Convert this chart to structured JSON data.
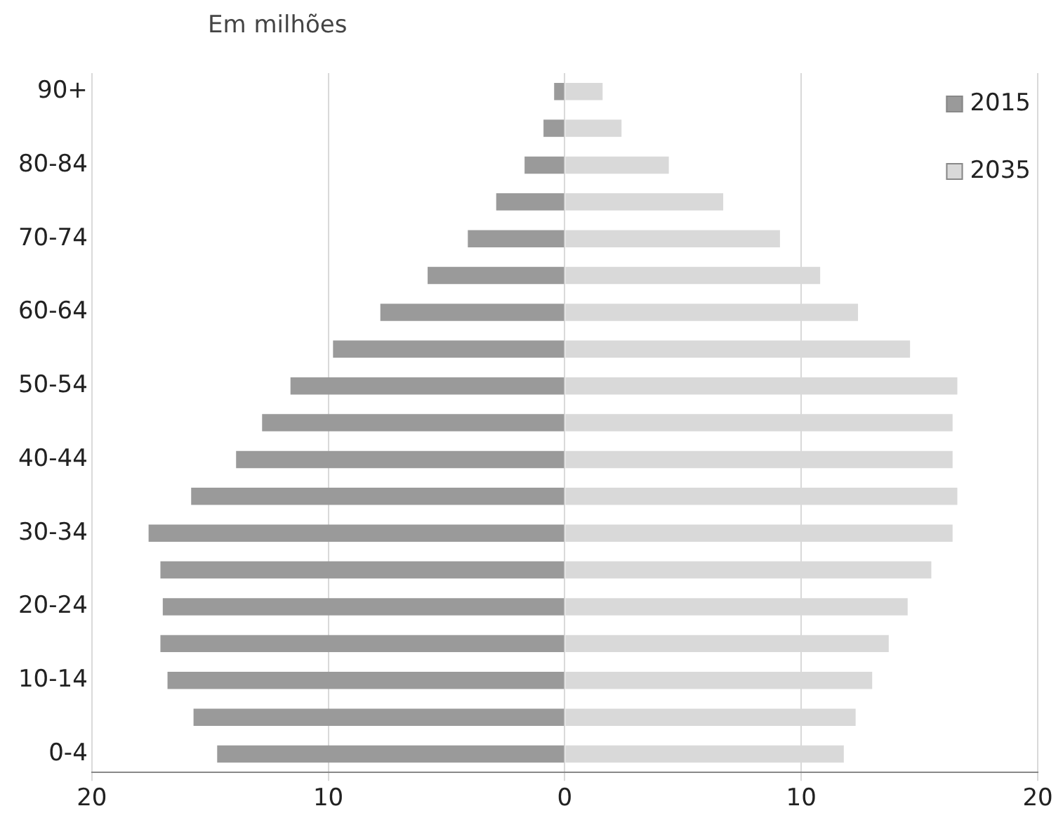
{
  "chart_data": {
    "type": "bar",
    "orientation": "horizontal",
    "stacked": true,
    "subtitle": "Em milhões",
    "categories": [
      "90+",
      null,
      "80-84",
      null,
      "70-74",
      null,
      "60-64",
      null,
      "50-54",
      null,
      "40-44",
      null,
      "30-34",
      null,
      "20-24",
      null,
      "10-14",
      null,
      "0-4"
    ],
    "series": [
      {
        "name": "2015",
        "color": "#9a9a9a",
        "values": [
          -0.45,
          -0.9,
          -1.7,
          -2.9,
          -4.1,
          -5.8,
          -7.8,
          -9.8,
          -11.6,
          -12.8,
          -13.9,
          -15.8,
          -17.6,
          -17.1,
          -17.0,
          -17.1,
          -16.8,
          -15.7,
          -14.7
        ]
      },
      {
        "name": "2035",
        "color": "#d9d9d9",
        "values": [
          1.6,
          2.4,
          4.4,
          6.7,
          9.1,
          10.8,
          12.4,
          14.6,
          16.6,
          16.4,
          16.4,
          16.6,
          16.4,
          15.5,
          14.5,
          13.7,
          13.0,
          12.3,
          11.8
        ]
      }
    ],
    "xlim": [
      -20,
      20
    ],
    "xticks": [
      {
        "value": -20,
        "label": "20"
      },
      {
        "value": -10,
        "label": "10"
      },
      0,
      10,
      20
    ],
    "grid": "x",
    "legend": "top right"
  }
}
